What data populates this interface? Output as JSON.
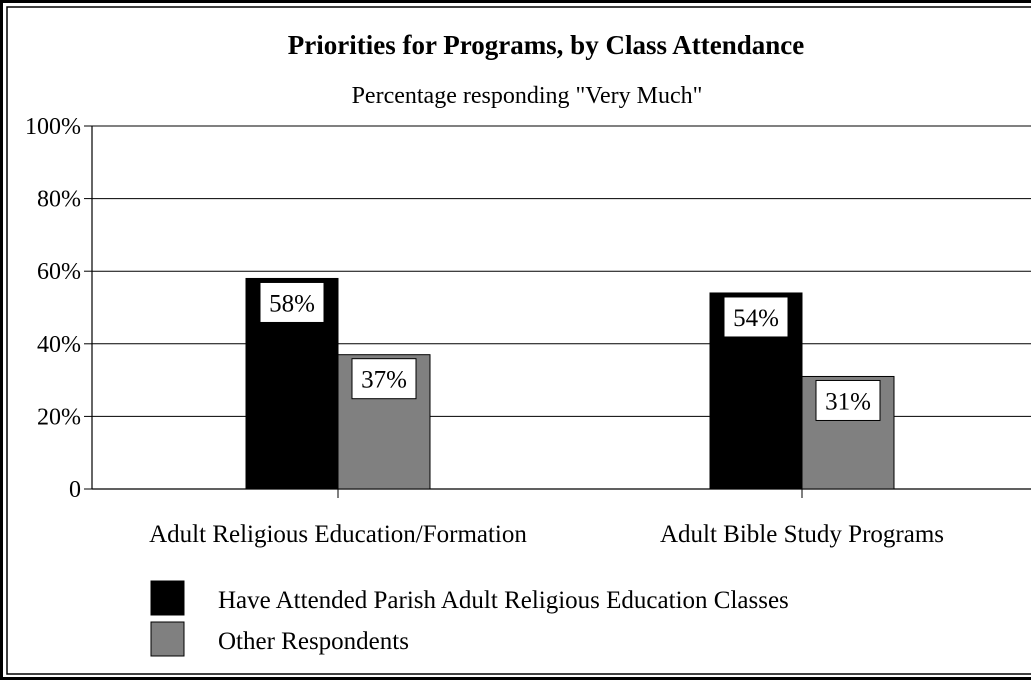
{
  "chart_data": {
    "type": "bar",
    "title": "Priorities for Programs, by Class Attendance",
    "subtitle": "Percentage responding \"Very Much\"",
    "categories": [
      "Adult Religious Education/Formation",
      "Adult Bible Study Programs"
    ],
    "series": [
      {
        "name": "Have Attended Parish Adult Religious Education Classes",
        "values": [
          58,
          54
        ],
        "labels": [
          "58%",
          "54%"
        ],
        "color": "#000000"
      },
      {
        "name": "Other Respondents",
        "values": [
          37,
          31
        ],
        "labels": [
          "37%",
          "31%"
        ],
        "color": "#808080"
      }
    ],
    "ylim": [
      0,
      100
    ],
    "yticks": [
      0,
      20,
      40,
      60,
      80,
      100
    ],
    "ytick_labels": [
      "0",
      "20%",
      "40%",
      "60%",
      "80%",
      "100%"
    ],
    "grid": true,
    "legend_position": "bottom-left"
  }
}
